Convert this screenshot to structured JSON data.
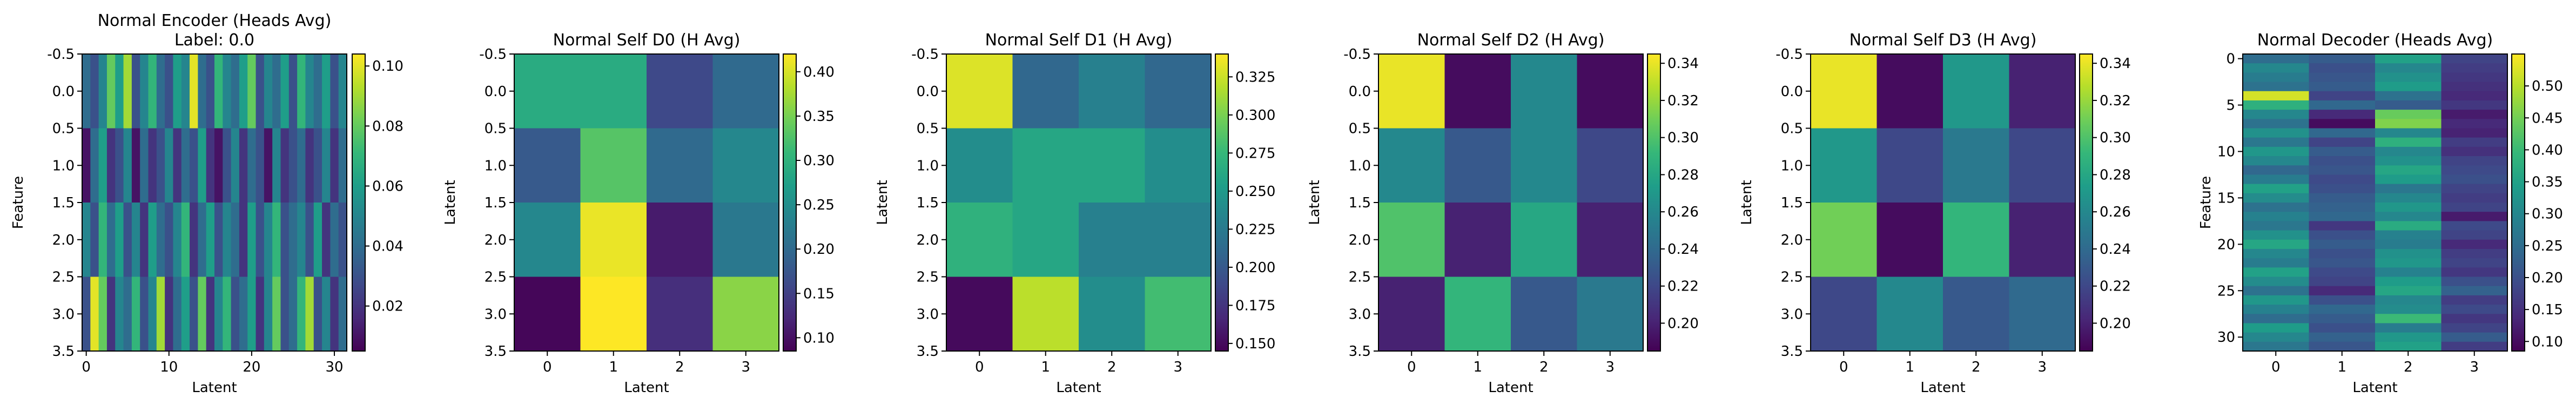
{
  "figure": {
    "colors": {
      "viridis": [
        "#440154",
        "#482878",
        "#3e4989",
        "#31688e",
        "#26828e",
        "#1f9e89",
        "#35b779",
        "#6ece58",
        "#b5de2b",
        "#fde725"
      ],
      "frame": "#000000",
      "background": "#ffffff"
    }
  },
  "chart_data": [
    {
      "type": "heatmap",
      "title": "Normal Encoder (Heads Avg)\nLabel: 0.0",
      "xlabel": "Latent",
      "ylabel": "Feature",
      "rows": 4,
      "cols": 32,
      "xlim": [
        -0.5,
        31.5
      ],
      "ylim": [
        3.5,
        -0.5
      ],
      "xticks": [
        0,
        10,
        20,
        30
      ],
      "yticks": [
        -0.5,
        0.0,
        0.5,
        1.0,
        1.5,
        2.0,
        2.5,
        3.0,
        3.5
      ],
      "ytick_format": "fixed1",
      "colorbar": {
        "min": 0.005,
        "max": 0.104,
        "ticks": [
          0.02,
          0.04,
          0.06,
          0.08,
          0.1
        ],
        "format": "fixed2"
      },
      "values": [
        [
          0.04,
          0.03,
          0.05,
          0.08,
          0.06,
          0.09,
          0.03,
          0.05,
          0.07,
          0.04,
          0.03,
          0.06,
          0.05,
          0.1,
          0.04,
          0.03,
          0.07,
          0.05,
          0.04,
          0.06,
          0.08,
          0.03,
          0.05,
          0.04,
          0.06,
          0.03,
          0.07,
          0.05,
          0.04,
          0.06,
          0.03,
          0.05
        ],
        [
          0.01,
          0.04,
          0.06,
          0.02,
          0.03,
          0.05,
          0.01,
          0.04,
          0.02,
          0.03,
          0.05,
          0.02,
          0.04,
          0.03,
          0.06,
          0.02,
          0.01,
          0.03,
          0.05,
          0.02,
          0.04,
          0.03,
          0.01,
          0.05,
          0.02,
          0.03,
          0.04,
          0.02,
          0.03,
          0.05,
          0.02,
          0.04
        ],
        [
          0.05,
          0.03,
          0.07,
          0.04,
          0.06,
          0.03,
          0.05,
          0.02,
          0.06,
          0.04,
          0.03,
          0.05,
          0.07,
          0.02,
          0.04,
          0.06,
          0.03,
          0.05,
          0.04,
          0.02,
          0.06,
          0.03,
          0.05,
          0.07,
          0.03,
          0.04,
          0.05,
          0.03,
          0.06,
          0.02,
          0.04,
          0.03
        ],
        [
          0.03,
          0.1,
          0.08,
          0.02,
          0.05,
          0.04,
          0.07,
          0.03,
          0.05,
          0.09,
          0.02,
          0.04,
          0.06,
          0.03,
          0.08,
          0.02,
          0.05,
          0.07,
          0.03,
          0.04,
          0.06,
          0.02,
          0.05,
          0.08,
          0.03,
          0.04,
          0.07,
          0.09,
          0.03,
          0.05,
          0.02,
          0.04
        ]
      ]
    },
    {
      "type": "heatmap",
      "title": "Normal Self D0 (H Avg)",
      "xlabel": "Latent",
      "ylabel": "Latent",
      "rows": 4,
      "cols": 4,
      "xlim": [
        -0.5,
        3.5
      ],
      "ylim": [
        3.5,
        -0.5
      ],
      "xticks": [
        0,
        1,
        2,
        3
      ],
      "yticks": [
        -0.5,
        0.0,
        0.5,
        1.0,
        1.5,
        2.0,
        2.5,
        3.0,
        3.5
      ],
      "ytick_format": "fixed1",
      "colorbar": {
        "min": 0.085,
        "max": 0.42,
        "ticks": [
          0.1,
          0.15,
          0.2,
          0.25,
          0.3,
          0.35,
          0.4
        ],
        "format": "fixed2"
      },
      "values": [
        [
          0.29,
          0.29,
          0.16,
          0.2
        ],
        [
          0.18,
          0.33,
          0.2,
          0.24
        ],
        [
          0.24,
          0.41,
          0.11,
          0.22
        ],
        [
          0.09,
          0.42,
          0.13,
          0.36
        ]
      ]
    },
    {
      "type": "heatmap",
      "title": "Normal Self D1 (H Avg)",
      "xlabel": "Latent",
      "ylabel": "Latent",
      "rows": 4,
      "cols": 4,
      "xlim": [
        -0.5,
        3.5
      ],
      "ylim": [
        3.5,
        -0.5
      ],
      "xticks": [
        0,
        1,
        2,
        3
      ],
      "yticks": [
        -0.5,
        0.0,
        0.5,
        1.0,
        1.5,
        2.0,
        2.5,
        3.0,
        3.5
      ],
      "ytick_format": "fixed1",
      "colorbar": {
        "min": 0.145,
        "max": 0.34,
        "ticks": [
          0.15,
          0.175,
          0.2,
          0.225,
          0.25,
          0.275,
          0.3,
          0.325
        ],
        "format": "fixed3"
      },
      "values": [
        [
          0.33,
          0.21,
          0.23,
          0.21
        ],
        [
          0.24,
          0.26,
          0.26,
          0.24
        ],
        [
          0.27,
          0.26,
          0.23,
          0.23
        ],
        [
          0.15,
          0.32,
          0.24,
          0.28
        ]
      ]
    },
    {
      "type": "heatmap",
      "title": "Normal Self D2 (H Avg)",
      "xlabel": "Latent",
      "ylabel": "Latent",
      "rows": 4,
      "cols": 4,
      "xlim": [
        -0.5,
        3.5
      ],
      "ylim": [
        3.5,
        -0.5
      ],
      "xticks": [
        0,
        1,
        2,
        3
      ],
      "yticks": [
        -0.5,
        0.0,
        0.5,
        1.0,
        1.5,
        2.0,
        2.5,
        3.0,
        3.5
      ],
      "ytick_format": "fixed1",
      "colorbar": {
        "min": 0.185,
        "max": 0.345,
        "ticks": [
          0.2,
          0.22,
          0.24,
          0.26,
          0.28,
          0.3,
          0.32,
          0.34
        ],
        "format": "fixed2"
      },
      "values": [
        [
          0.34,
          0.19,
          0.26,
          0.19
        ],
        [
          0.26,
          0.23,
          0.26,
          0.22
        ],
        [
          0.3,
          0.2,
          0.28,
          0.2
        ],
        [
          0.2,
          0.29,
          0.23,
          0.25
        ]
      ]
    },
    {
      "type": "heatmap",
      "title": "Normal Self D3 (H Avg)",
      "xlabel": "Latent",
      "ylabel": "Latent",
      "rows": 4,
      "cols": 4,
      "xlim": [
        -0.5,
        3.5
      ],
      "ylim": [
        3.5,
        -0.5
      ],
      "xticks": [
        0,
        1,
        2,
        3
      ],
      "yticks": [
        -0.5,
        0.0,
        0.5,
        1.0,
        1.5,
        2.0,
        2.5,
        3.0,
        3.5
      ],
      "ytick_format": "fixed1",
      "colorbar": {
        "min": 0.185,
        "max": 0.345,
        "ticks": [
          0.2,
          0.22,
          0.24,
          0.26,
          0.28,
          0.3,
          0.32,
          0.34
        ],
        "format": "fixed2"
      },
      "values": [
        [
          0.34,
          0.19,
          0.27,
          0.2
        ],
        [
          0.27,
          0.22,
          0.25,
          0.22
        ],
        [
          0.31,
          0.19,
          0.29,
          0.2
        ],
        [
          0.22,
          0.26,
          0.23,
          0.24
        ]
      ]
    },
    {
      "type": "heatmap",
      "title": "Normal Decoder (Heads Avg)",
      "xlabel": "Latent",
      "ylabel": "Feature",
      "rows": 32,
      "cols": 4,
      "xlim": [
        -0.5,
        3.5
      ],
      "ylim": [
        31.5,
        -0.5
      ],
      "xticks": [
        0,
        1,
        2,
        3
      ],
      "yticks": [
        0,
        5,
        10,
        15,
        20,
        25,
        30
      ],
      "ytick_format": "int",
      "colorbar": {
        "min": 0.085,
        "max": 0.55,
        "ticks": [
          0.1,
          0.15,
          0.2,
          0.25,
          0.3,
          0.35,
          0.4,
          0.45,
          0.5
        ],
        "format": "fixed2"
      },
      "values": [
        [
          0.25,
          0.22,
          0.35,
          0.18
        ],
        [
          0.3,
          0.2,
          0.3,
          0.17
        ],
        [
          0.28,
          0.21,
          0.32,
          0.16
        ],
        [
          0.26,
          0.22,
          0.34,
          0.15
        ],
        [
          0.52,
          0.18,
          0.26,
          0.14
        ],
        [
          0.38,
          0.24,
          0.22,
          0.16
        ],
        [
          0.3,
          0.14,
          0.44,
          0.12
        ],
        [
          0.26,
          0.1,
          0.46,
          0.14
        ],
        [
          0.32,
          0.24,
          0.3,
          0.13
        ],
        [
          0.27,
          0.18,
          0.38,
          0.17
        ],
        [
          0.33,
          0.22,
          0.3,
          0.15
        ],
        [
          0.3,
          0.2,
          0.32,
          0.18
        ],
        [
          0.24,
          0.21,
          0.36,
          0.19
        ],
        [
          0.28,
          0.19,
          0.34,
          0.2
        ],
        [
          0.35,
          0.2,
          0.27,
          0.18
        ],
        [
          0.31,
          0.22,
          0.3,
          0.17
        ],
        [
          0.26,
          0.23,
          0.33,
          0.18
        ],
        [
          0.29,
          0.24,
          0.3,
          0.12
        ],
        [
          0.27,
          0.16,
          0.37,
          0.19
        ],
        [
          0.32,
          0.2,
          0.29,
          0.18
        ],
        [
          0.36,
          0.22,
          0.28,
          0.14
        ],
        [
          0.3,
          0.2,
          0.32,
          0.17
        ],
        [
          0.28,
          0.21,
          0.33,
          0.18
        ],
        [
          0.35,
          0.19,
          0.29,
          0.16
        ],
        [
          0.31,
          0.18,
          0.34,
          0.2
        ],
        [
          0.26,
          0.14,
          0.36,
          0.23
        ],
        [
          0.33,
          0.2,
          0.3,
          0.17
        ],
        [
          0.29,
          0.24,
          0.31,
          0.19
        ],
        [
          0.25,
          0.22,
          0.4,
          0.16
        ],
        [
          0.34,
          0.2,
          0.28,
          0.18
        ],
        [
          0.3,
          0.23,
          0.33,
          0.22
        ],
        [
          0.27,
          0.21,
          0.35,
          0.17
        ]
      ]
    }
  ]
}
